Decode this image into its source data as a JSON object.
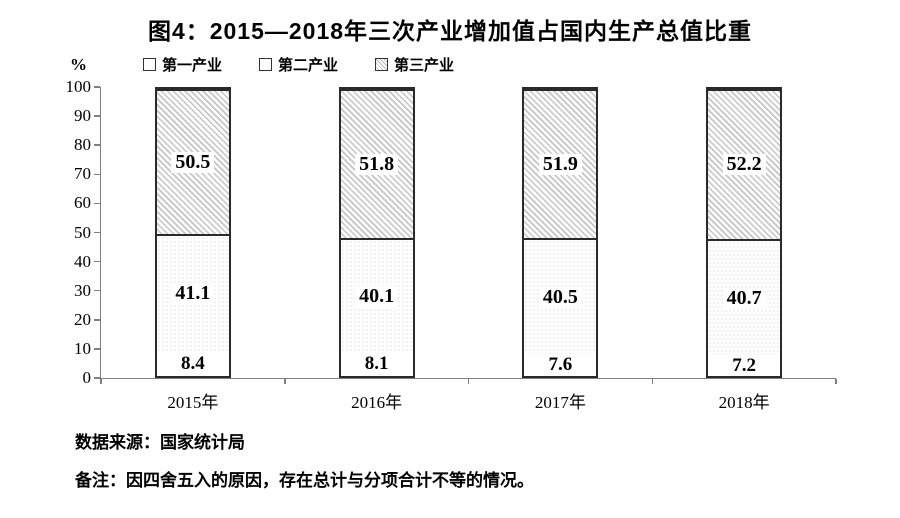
{
  "unit_label": "%",
  "footer": {
    "source": "数据来源：国家统计局",
    "note": "备注：因四舍五入的原因，存在总计与分项合计不等的情况。"
  },
  "colors": {
    "text": "#000000",
    "axis": "#7f7f7f",
    "bar_border": "#2a2a2a",
    "hatch_gray": "#c6c6c6",
    "dot_gray": "#cdcdcd",
    "background": "#ffffff"
  },
  "chart_data": {
    "type": "bar",
    "stacked": true,
    "title": "图4：2015—2018年三次产业增加值占国内生产总值比重",
    "categories": [
      "2015年",
      "2016年",
      "2017年",
      "2018年"
    ],
    "series": [
      {
        "name": "第一产业",
        "values": [
          8.4,
          8.1,
          7.6,
          7.2
        ],
        "fill": "white"
      },
      {
        "name": "第二产业",
        "values": [
          41.1,
          40.1,
          40.5,
          40.7
        ],
        "fill": "fine-dots"
      },
      {
        "name": "第三产业",
        "values": [
          50.5,
          51.8,
          51.9,
          52.2
        ],
        "fill": "diagonal-hatch"
      }
    ],
    "xlabel": "",
    "ylabel": "%",
    "ylim": [
      0,
      100
    ],
    "yticks": [
      0,
      10,
      20,
      30,
      40,
      50,
      60,
      70,
      80,
      90,
      100
    ],
    "grid": false,
    "legend_position": "top",
    "value_labels": "inside-segments"
  }
}
